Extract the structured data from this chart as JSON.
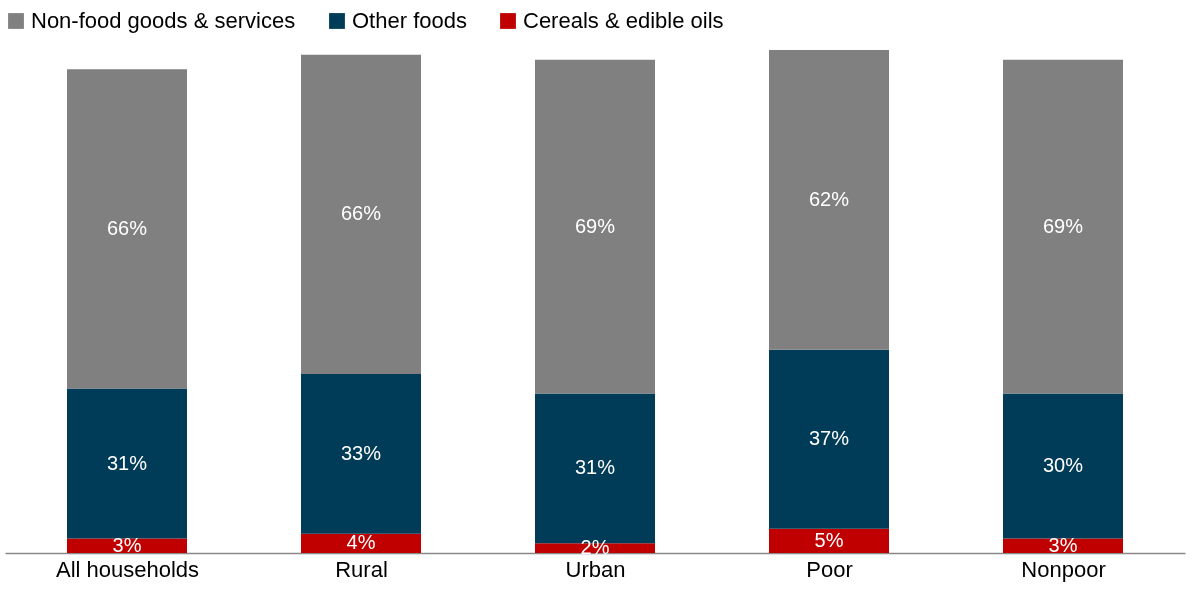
{
  "chart_data": {
    "type": "bar",
    "stacked": true,
    "legend": "top",
    "tick_labels": "x",
    "categories": [
      "All households",
      "Rural",
      "Urban",
      "Poor",
      "Nonpoor"
    ],
    "series": [
      {
        "name": "Cereals & edible oils",
        "color": "#c00000",
        "values": [
          3,
          4,
          2,
          5,
          3
        ],
        "value_labels": [
          "3%",
          "4%",
          "2%",
          "5%",
          "3%"
        ]
      },
      {
        "name": "Other foods",
        "color": "#003b57",
        "values": [
          31,
          33,
          31,
          37,
          30
        ],
        "value_labels": [
          "31%",
          "33%",
          "31%",
          "37%",
          "30%"
        ]
      },
      {
        "name": "Non-food goods & services",
        "color": "#808080",
        "values": [
          66,
          66,
          69,
          62,
          69
        ],
        "value_labels": [
          "66%",
          "66%",
          "69%",
          "62%",
          "69%"
        ]
      }
    ]
  }
}
